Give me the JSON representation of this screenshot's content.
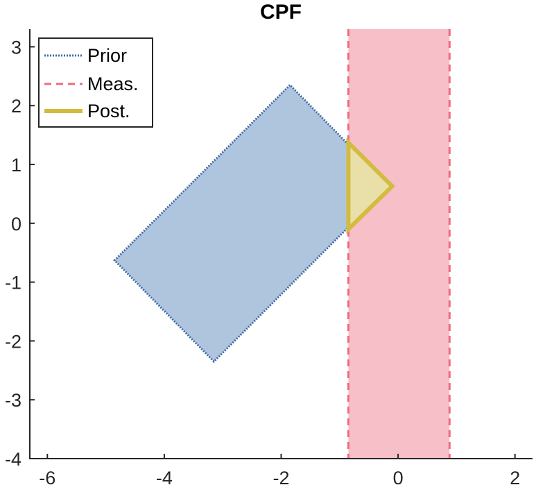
{
  "chart_data": {
    "type": "area",
    "title": "CPF",
    "xlabel": "",
    "ylabel": "",
    "xlim": [
      -6.3,
      2.3
    ],
    "ylim": [
      -4,
      3.3
    ],
    "xticks": [
      -6,
      -4,
      -2,
      0,
      2
    ],
    "yticks": [
      -4,
      -3,
      -2,
      -1,
      0,
      1,
      2,
      3
    ],
    "grid": false,
    "legend": {
      "position": "top-left"
    },
    "series": [
      {
        "name": "Prior",
        "line_style": "dotted",
        "edge_color": "#3e6aa6",
        "fill_color": "#afc5dd",
        "polygon": [
          [
            -1.85,
            2.35
          ],
          [
            -4.85,
            -0.63
          ],
          [
            -3.15,
            -2.35
          ],
          [
            -0.15,
            0.63
          ]
        ]
      },
      {
        "name": "Meas.",
        "line_style": "dashed",
        "edge_color": "#ee6b7d",
        "fill_color": "#f7bfc7",
        "x_range": [
          -0.85,
          0.88
        ]
      },
      {
        "name": "Post.",
        "line_style": "solid",
        "edge_color": "#d3bb3f",
        "fill_color": "#e8dfa9",
        "polygon": [
          [
            -0.85,
            1.37
          ],
          [
            -0.1,
            0.63
          ],
          [
            -0.85,
            -0.1
          ]
        ]
      }
    ]
  }
}
